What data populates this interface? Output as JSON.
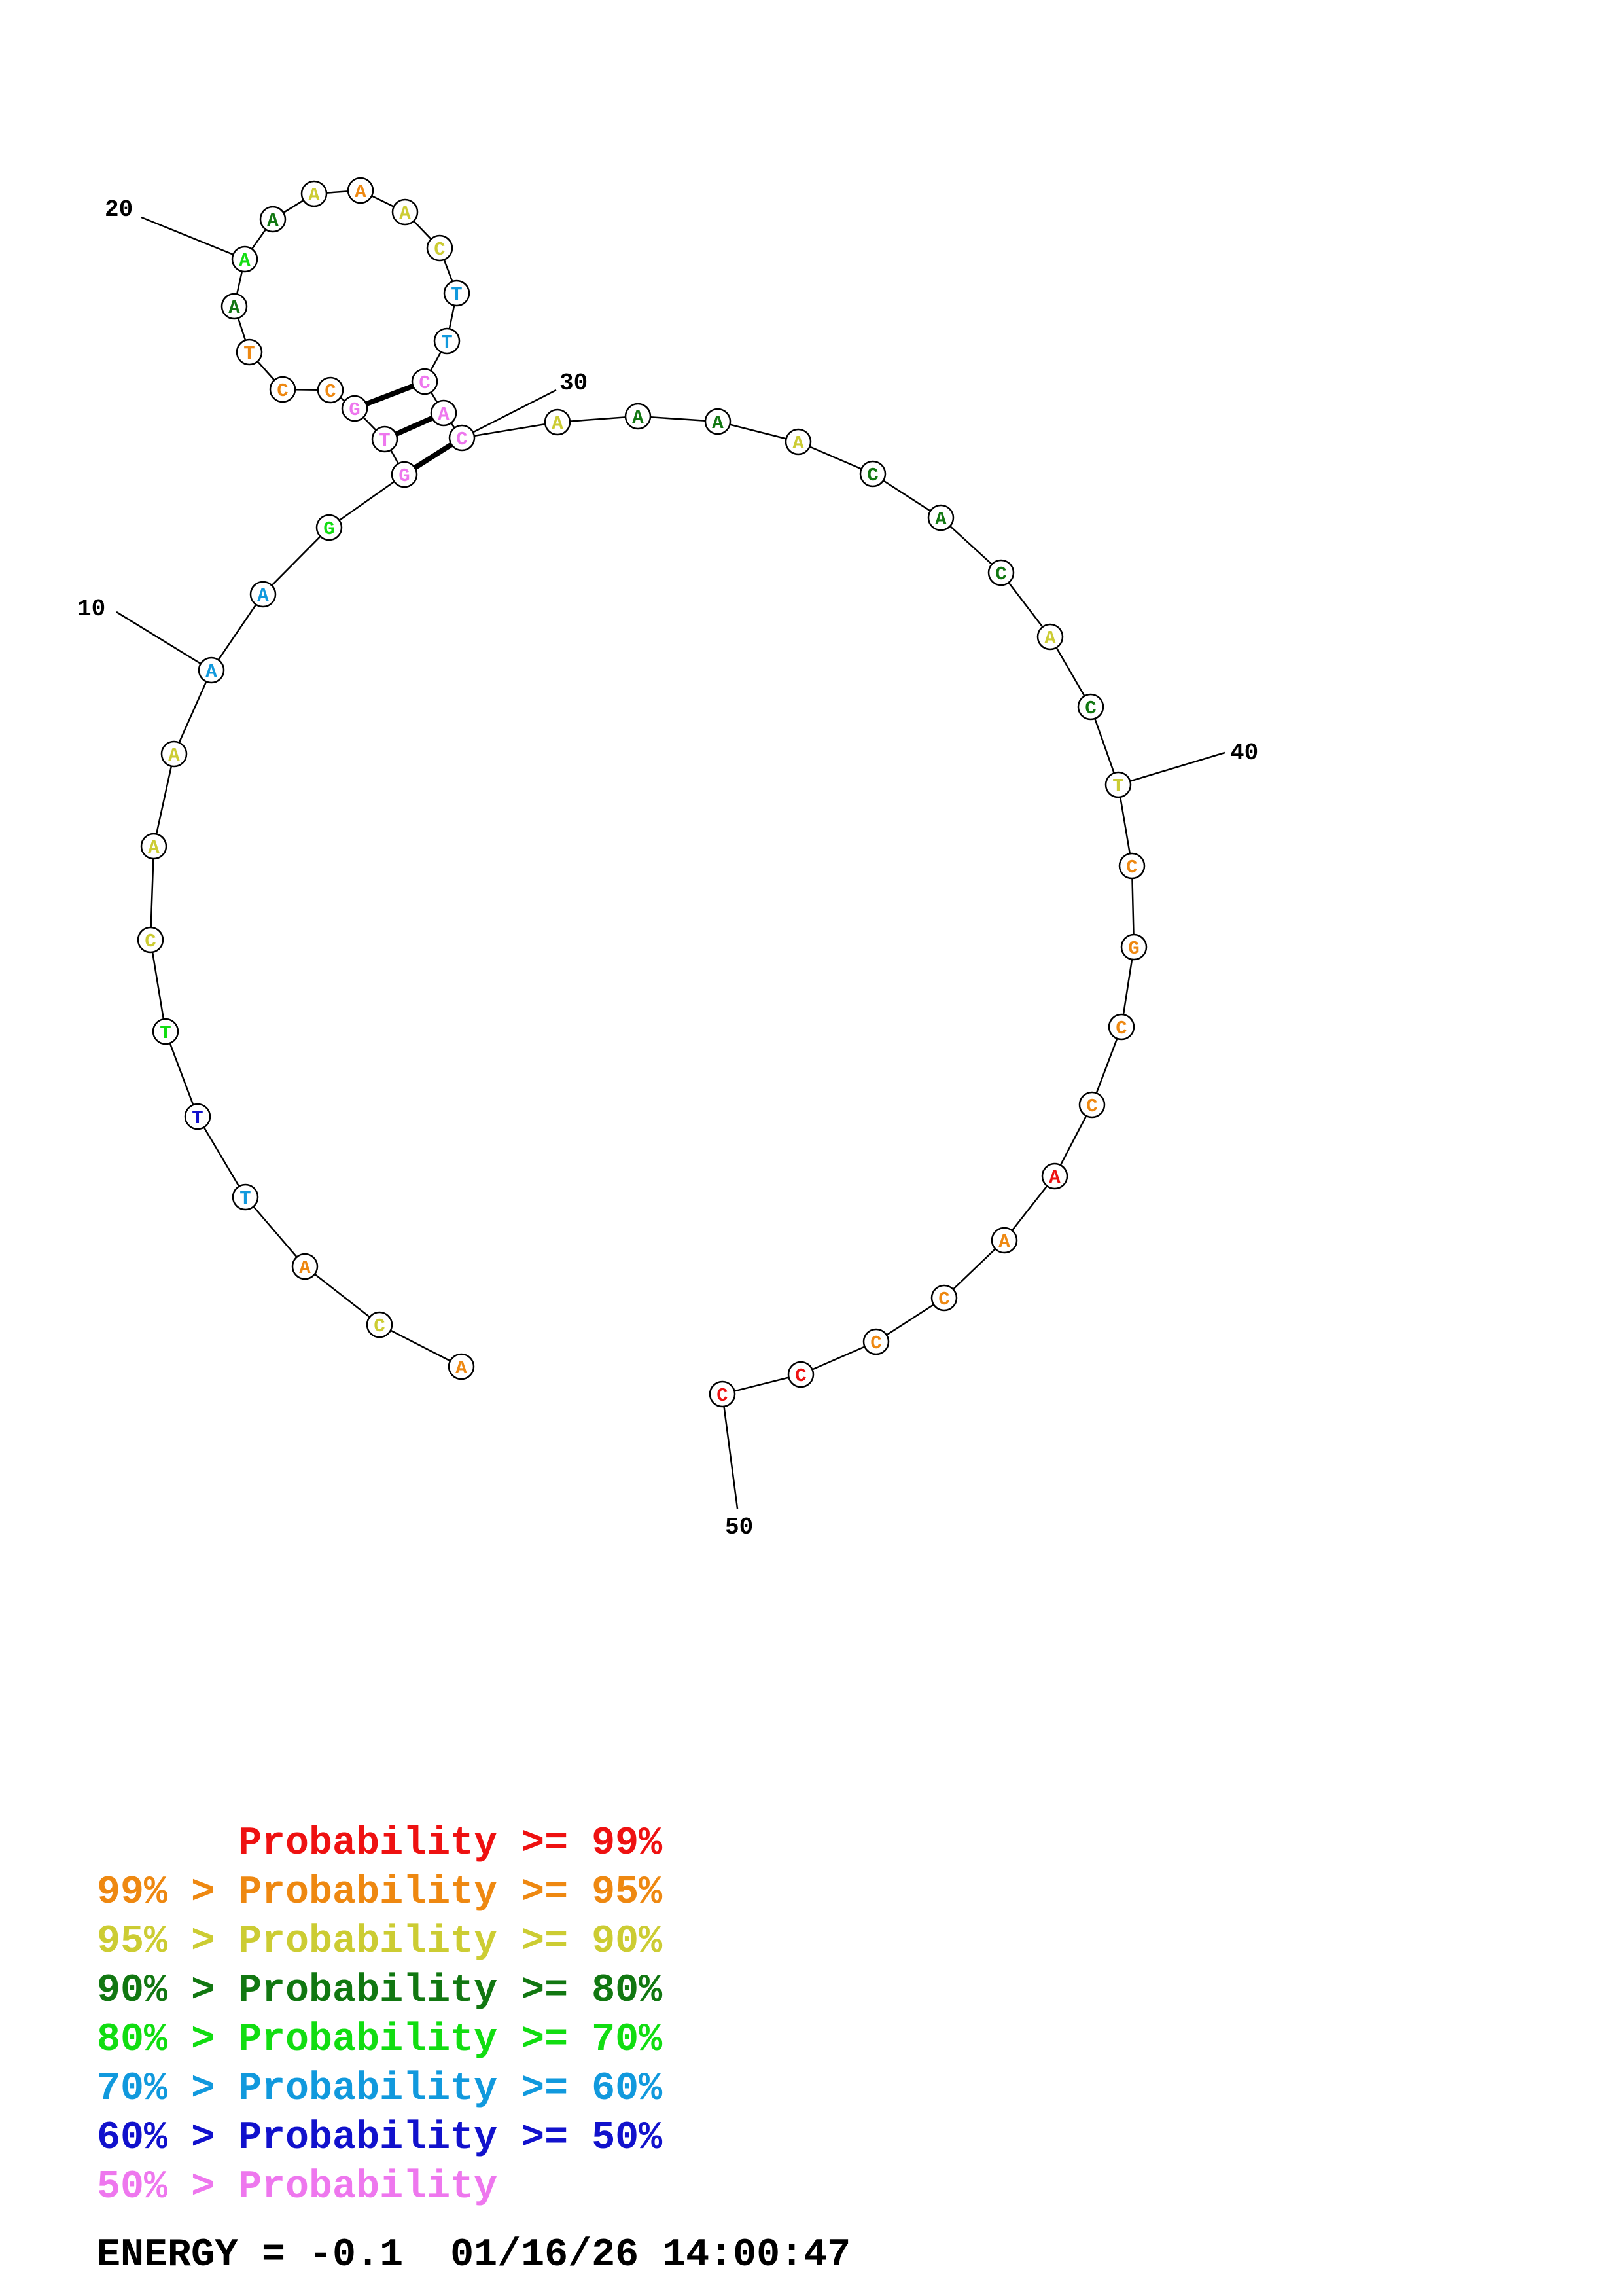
{
  "colors": {
    "p99": "#ee1111",
    "p95": "#ee8811",
    "p90": "#cccc33",
    "p80": "#117711",
    "p70": "#11dd11",
    "p60": "#1199dd",
    "p50": "#1111cc",
    "plt50": "#ee77ee"
  },
  "sequence": [
    {
      "base": "A",
      "p": "p60"
    },
    {
      "base": "A",
      "p": "p60"
    },
    {
      "base": "G",
      "p": "p70"
    },
    {
      "base": "G",
      "p": "plt50"
    },
    {
      "base": "T",
      "p": "plt50"
    },
    {
      "base": "G",
      "p": "plt50"
    },
    {
      "base": "C",
      "p": "p95"
    },
    {
      "base": "C",
      "p": "p95"
    },
    {
      "base": "T",
      "p": "p95"
    },
    {
      "base": "A",
      "p": "p80"
    },
    {
      "base": "A",
      "p": "p70"
    },
    {
      "base": "A",
      "p": "p80"
    },
    {
      "base": "A",
      "p": "p90"
    },
    {
      "base": "A",
      "p": "p95"
    },
    {
      "base": "A",
      "p": "p90"
    },
    {
      "base": "C",
      "p": "p90"
    },
    {
      "base": "T",
      "p": "p60"
    },
    {
      "base": "T",
      "p": "p60"
    },
    {
      "base": "C",
      "p": "plt50"
    },
    {
      "base": "A",
      "p": "plt50"
    },
    {
      "base": "C",
      "p": "plt50"
    },
    {
      "base": "A",
      "p": "p90"
    },
    {
      "base": "A",
      "p": "p80"
    },
    {
      "base": "A",
      "p": "p80"
    },
    {
      "base": "A",
      "p": "p90"
    },
    {
      "base": "C",
      "p": "p80"
    },
    {
      "base": "A",
      "p": "p80"
    },
    {
      "base": "C",
      "p": "p80"
    },
    {
      "base": "A",
      "p": "p90"
    },
    {
      "base": "C",
      "p": "p80"
    },
    {
      "base": "T",
      "p": "p90"
    },
    {
      "base": "C",
      "p": "p95"
    },
    {
      "base": "G",
      "p": "p95"
    },
    {
      "base": "C",
      "p": "p95"
    },
    {
      "base": "C",
      "p": "p95"
    },
    {
      "base": "A",
      "p": "p99"
    },
    {
      "base": "A",
      "p": "p95"
    },
    {
      "base": "C",
      "p": "p95"
    },
    {
      "base": "C",
      "p": "p95"
    },
    {
      "base": "C",
      "p": "p99"
    },
    {
      "base": "C",
      "p": "p99"
    }
  ],
  "prefix": [
    {
      "base": "A",
      "p": "p95"
    },
    {
      "base": "C",
      "p": "p90"
    },
    {
      "base": "A",
      "p": "p95"
    },
    {
      "base": "T",
      "p": "p60"
    },
    {
      "base": "T",
      "p": "p50"
    },
    {
      "base": "T",
      "p": "p70"
    },
    {
      "base": "C",
      "p": "p90"
    },
    {
      "base": "A",
      "p": "p90"
    },
    {
      "base": "A",
      "p": "p90"
    }
  ],
  "base_pairs": [
    [
      4,
      21
    ],
    [
      5,
      20
    ],
    [
      6,
      19
    ]
  ],
  "position_labels": [
    "10",
    "20",
    "30",
    "40",
    "50"
  ],
  "legend": [
    {
      "text": "      Probability >= 99%",
      "p": "p99"
    },
    {
      "text": "99% > Probability >= 95%",
      "p": "p95"
    },
    {
      "text": "95% > Probability >= 90%",
      "p": "p90"
    },
    {
      "text": "90% > Probability >= 80%",
      "p": "p80"
    },
    {
      "text": "80% > Probability >= 70%",
      "p": "p70"
    },
    {
      "text": "70% > Probability >= 60%",
      "p": "p60"
    },
    {
      "text": "60% > Probability >= 50%",
      "p": "p50"
    },
    {
      "text": "50% > Probability",
      "p": "plt50"
    }
  ],
  "energy_text": "ENERGY = -0.1  01/16/26 14:00:47"
}
